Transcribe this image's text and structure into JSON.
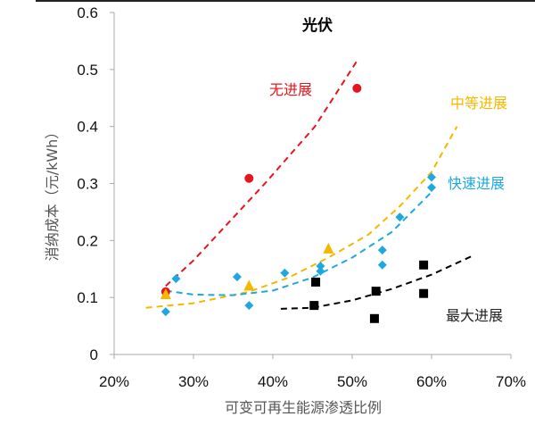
{
  "chart_data": {
    "type": "scatter",
    "title": "光伏",
    "xlabel": "可变可再生能源渗透比例",
    "ylabel": "消纳成本（元/kWh）",
    "xlim": [
      20,
      70
    ],
    "ylim": [
      0,
      0.6
    ],
    "x_ticks": [
      "20%",
      "30%",
      "40%",
      "50%",
      "60%",
      "70%"
    ],
    "x_tick_values": [
      20,
      30,
      40,
      50,
      60,
      70
    ],
    "y_ticks": [
      "0",
      "0.1",
      "0.2",
      "0.3",
      "0.4",
      "0.5",
      "0.6"
    ],
    "y_tick_values": [
      0,
      0.1,
      0.2,
      0.3,
      0.4,
      0.5,
      0.6
    ],
    "grid": false,
    "series": [
      {
        "name": "无进展",
        "color": "#e8141c",
        "marker": "circle",
        "points": [
          [
            26.5,
            0.11
          ],
          [
            37,
            0.309
          ],
          [
            50.6,
            0.467
          ]
        ],
        "trend": [
          [
            26.5,
            0.12
          ],
          [
            30,
            0.165
          ],
          [
            35,
            0.24
          ],
          [
            39,
            0.3
          ],
          [
            45.3,
            0.4
          ],
          [
            50.6,
            0.515
          ]
        ]
      },
      {
        "name": "中等进展",
        "color": "#f5b800",
        "marker": "triangle",
        "points": [
          [
            26.5,
            0.105
          ],
          [
            37,
            0.12
          ],
          [
            47,
            0.185
          ]
        ],
        "trend": [
          [
            24,
            0.082
          ],
          [
            30,
            0.09
          ],
          [
            37,
            0.11
          ],
          [
            42,
            0.135
          ],
          [
            47,
            0.17
          ],
          [
            52,
            0.21
          ],
          [
            56,
            0.26
          ],
          [
            60,
            0.32
          ],
          [
            63.2,
            0.4
          ]
        ]
      },
      {
        "name": "快速进展",
        "color": "#1fa8e0",
        "marker": "diamond",
        "points": [
          [
            26.5,
            0.075
          ],
          [
            27.8,
            0.133
          ],
          [
            35.5,
            0.136
          ],
          [
            37,
            0.086
          ],
          [
            41.5,
            0.143
          ],
          [
            46,
            0.155
          ],
          [
            46,
            0.146
          ],
          [
            53.8,
            0.183
          ],
          [
            53.8,
            0.157
          ],
          [
            56,
            0.241
          ],
          [
            60,
            0.311
          ],
          [
            60,
            0.293
          ]
        ],
        "trend": [
          [
            26.5,
            0.112
          ],
          [
            30,
            0.105
          ],
          [
            35,
            0.104
          ],
          [
            40,
            0.112
          ],
          [
            45,
            0.135
          ],
          [
            50,
            0.17
          ],
          [
            55,
            0.215
          ],
          [
            60,
            0.285
          ]
        ]
      },
      {
        "name": "最大进展",
        "color": "#000000",
        "marker": "square",
        "points": [
          [
            45.4,
            0.127
          ],
          [
            45.2,
            0.086
          ],
          [
            53,
            0.111
          ],
          [
            52.8,
            0.063
          ],
          [
            59,
            0.157
          ],
          [
            59,
            0.107
          ]
        ],
        "trend": [
          [
            41,
            0.08
          ],
          [
            45,
            0.082
          ],
          [
            50,
            0.095
          ],
          [
            55,
            0.115
          ],
          [
            60,
            0.14
          ],
          [
            65,
            0.172
          ]
        ]
      }
    ]
  }
}
